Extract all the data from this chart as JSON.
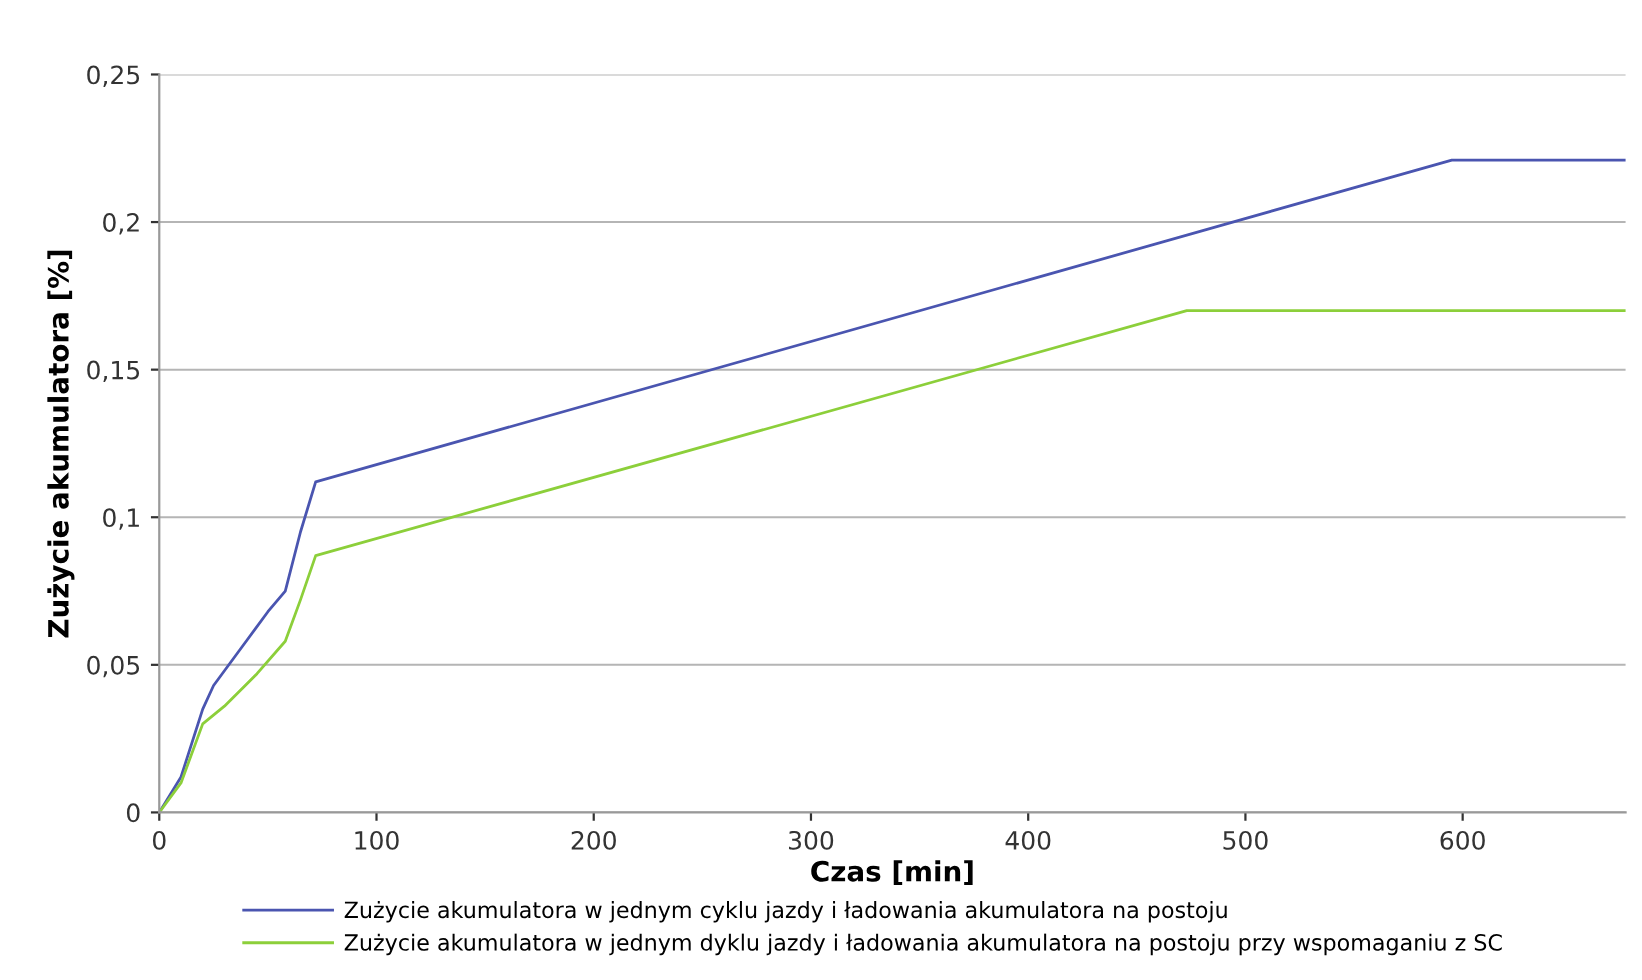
{
  "chart_data": {
    "type": "line",
    "xlabel": "Czas [min]",
    "ylabel": "Zużycie akumulatora [%]",
    "xlim": [
      0,
      675
    ],
    "xticks": [
      0,
      100,
      200,
      300,
      400,
      500,
      600
    ],
    "ylim": [
      0,
      0.25
    ],
    "yticks": [
      {
        "value": 0,
        "label": "0"
      },
      {
        "value": 0.05,
        "label": "0,05"
      },
      {
        "value": 0.1,
        "label": "0,1"
      },
      {
        "value": 0.15,
        "label": "0,15"
      },
      {
        "value": 0.2,
        "label": "0,2"
      },
      {
        "value": 0.25,
        "label": "0,25"
      }
    ],
    "grid": "y",
    "legend": "bottom",
    "marker": "none",
    "line_style": "solid",
    "series": [
      {
        "name": "Zużycie akumulatora w jednym cyklu jazdy i ładowania akumulatora na postoju",
        "color": "#4a55b0",
        "x": [
          0,
          10,
          20,
          25,
          30,
          40,
          50,
          58,
          65,
          72,
          595,
          675
        ],
        "values": [
          0,
          0.012,
          0.035,
          0.043,
          0.048,
          0.058,
          0.068,
          0.075,
          0.095,
          0.112,
          0.221,
          0.221
        ]
      },
      {
        "name": "Zużycie akumulatora w jednym dyklu jazdy i ładowania akumulatora na postoju przy wspomaganiu z SC",
        "color": "#8ccf3a",
        "x": [
          0,
          10,
          20,
          30,
          45,
          58,
          65,
          72,
          473,
          675
        ],
        "values": [
          0,
          0.01,
          0.03,
          0.036,
          0.047,
          0.058,
          0.072,
          0.087,
          0.17,
          0.17
        ]
      }
    ]
  }
}
